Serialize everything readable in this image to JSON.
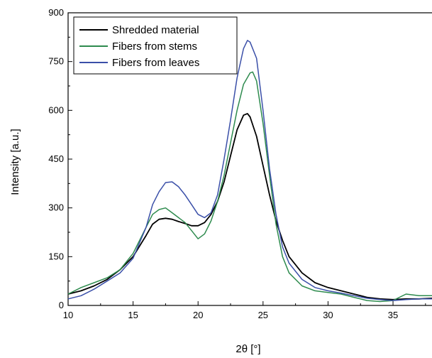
{
  "chart_data": {
    "type": "line",
    "title": "",
    "xlabel": "2θ [°]",
    "ylabel": "Intensity [a.u.]",
    "xlim": [
      10,
      38
    ],
    "ylim": [
      0,
      900
    ],
    "xticks": [
      10,
      15,
      20,
      25,
      30,
      35
    ],
    "yticks": [
      0,
      150,
      300,
      450,
      600,
      750,
      900
    ],
    "grid": false,
    "legend_position": "top-left",
    "series": [
      {
        "name": "Shredded material",
        "color": "#000000",
        "x": [
          10,
          11,
          12,
          13,
          14,
          15,
          16,
          16.5,
          17,
          17.5,
          18,
          18.5,
          19,
          19.5,
          20,
          20.5,
          21,
          21.5,
          22,
          22.5,
          23,
          23.5,
          23.8,
          24,
          24.5,
          25,
          25.5,
          26,
          26.5,
          27,
          28,
          29,
          30,
          31,
          32,
          33,
          34,
          35,
          36,
          37,
          38
        ],
        "y": [
          35,
          45,
          60,
          80,
          110,
          150,
          215,
          250,
          265,
          268,
          265,
          258,
          252,
          245,
          245,
          255,
          280,
          320,
          380,
          460,
          540,
          585,
          590,
          580,
          520,
          430,
          340,
          260,
          200,
          150,
          100,
          70,
          55,
          45,
          35,
          25,
          20,
          18,
          20,
          20,
          22
        ]
      },
      {
        "name": "Fibers from stems",
        "color": "#2e8b4e",
        "x": [
          10,
          11,
          12,
          13,
          14,
          15,
          16,
          16.5,
          17,
          17.5,
          18,
          18.5,
          19,
          19.5,
          20,
          20.5,
          21,
          21.5,
          22,
          22.5,
          23,
          23.5,
          24,
          24.2,
          24.5,
          25,
          25.5,
          26,
          26.5,
          27,
          28,
          29,
          30,
          31,
          32,
          33,
          34,
          35,
          36,
          37,
          38
        ],
        "y": [
          35,
          55,
          70,
          85,
          110,
          160,
          240,
          280,
          295,
          300,
          285,
          270,
          255,
          230,
          205,
          220,
          260,
          320,
          400,
          500,
          600,
          680,
          715,
          718,
          690,
          560,
          400,
          250,
          150,
          100,
          60,
          45,
          40,
          35,
          25,
          15,
          12,
          15,
          35,
          30,
          30
        ]
      },
      {
        "name": "Fibers from leaves",
        "color": "#3a4fa8",
        "x": [
          10,
          11,
          12,
          13,
          14,
          15,
          16,
          16.5,
          17,
          17.5,
          18,
          18.5,
          19,
          19.5,
          20,
          20.5,
          21,
          21.5,
          22,
          22.5,
          23,
          23.5,
          23.8,
          24,
          24.5,
          25,
          25.5,
          26,
          26.5,
          27,
          28,
          29,
          30,
          31,
          32,
          33,
          34,
          35,
          36,
          37,
          38
        ],
        "y": [
          20,
          30,
          50,
          75,
          100,
          145,
          240,
          310,
          350,
          378,
          380,
          365,
          340,
          310,
          280,
          270,
          285,
          340,
          450,
          570,
          700,
          790,
          815,
          810,
          760,
          600,
          420,
          280,
          180,
          130,
          80,
          55,
          45,
          38,
          30,
          22,
          18,
          15,
          18,
          20,
          20
        ]
      }
    ]
  }
}
